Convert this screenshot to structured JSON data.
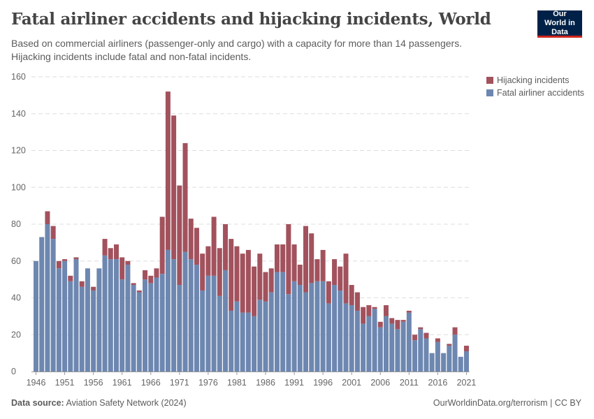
{
  "header": {
    "title": "Fatal airliner accidents and hijacking incidents, World",
    "subtitle": "Based on commercial airliners (passenger-only and cargo) with a capacity for more than 14 passengers. Hijacking incidents include fatal and non-fatal incidents.",
    "logo": "Our World in Data"
  },
  "footer": {
    "source_label": "Data source:",
    "source": "Aviation Safety Network (2024)",
    "url": "OurWorldinData.org/terrorism | CC BY"
  },
  "colors": {
    "accidents": "#6d87b0",
    "hijacking": "#a2525d"
  },
  "chart_data": {
    "type": "bar",
    "stacked": true,
    "grid": true,
    "legend_position": "top-right",
    "ylim": [
      0,
      160
    ],
    "yticks": [
      0,
      20,
      40,
      60,
      80,
      100,
      120,
      140,
      160
    ],
    "xticks": [
      "1946",
      "1951",
      "1956",
      "1961",
      "1966",
      "1971",
      "1976",
      "1981",
      "1986",
      "1991",
      "1996",
      "2001",
      "2006",
      "2011",
      "2016",
      "2021"
    ],
    "categories": [
      1946,
      1947,
      1948,
      1949,
      1950,
      1951,
      1952,
      1953,
      1954,
      1955,
      1956,
      1957,
      1958,
      1959,
      1960,
      1961,
      1962,
      1963,
      1964,
      1965,
      1966,
      1967,
      1968,
      1969,
      1970,
      1971,
      1972,
      1973,
      1974,
      1975,
      1976,
      1977,
      1978,
      1979,
      1980,
      1981,
      1982,
      1983,
      1984,
      1985,
      1986,
      1987,
      1988,
      1989,
      1990,
      1991,
      1992,
      1993,
      1994,
      1995,
      1996,
      1997,
      1998,
      1999,
      2000,
      2001,
      2002,
      2003,
      2004,
      2005,
      2006,
      2007,
      2008,
      2009,
      2010,
      2011,
      2012,
      2013,
      2014,
      2015,
      2016,
      2017,
      2018,
      2019,
      2020,
      2021
    ],
    "series": [
      {
        "name": "Fatal airliner accidents",
        "values": [
          60,
          73,
          80,
          72,
          56,
          60,
          49,
          61,
          46,
          56,
          44,
          56,
          63,
          61,
          61,
          50,
          58,
          47,
          43,
          50,
          48,
          51,
          53,
          66,
          61,
          47,
          65,
          61,
          58,
          44,
          52,
          52,
          41,
          55,
          33,
          38,
          32,
          32,
          30,
          39,
          38,
          43,
          54,
          54,
          42,
          49,
          47,
          43,
          48,
          49,
          49,
          37,
          47,
          44,
          37,
          36,
          33,
          26,
          30,
          34,
          24,
          30,
          26,
          23,
          27,
          32,
          17,
          23,
          18,
          10,
          16,
          10,
          14,
          20,
          8,
          11
        ]
      },
      {
        "name": "Hijacking incidents",
        "values": [
          0,
          0,
          7,
          7,
          4,
          1,
          3,
          1,
          3,
          0,
          2,
          0,
          9,
          6,
          8,
          12,
          2,
          1,
          1,
          5,
          4,
          5,
          31,
          86,
          78,
          54,
          59,
          22,
          20,
          20,
          16,
          32,
          26,
          25,
          39,
          30,
          32,
          34,
          27,
          25,
          16,
          13,
          15,
          15,
          38,
          20,
          11,
          36,
          27,
          12,
          17,
          12,
          14,
          13,
          27,
          11,
          10,
          9,
          6,
          1,
          3,
          6,
          3,
          5,
          1,
          1,
          3,
          1,
          3,
          0,
          2,
          0,
          1,
          4,
          0,
          3
        ]
      }
    ]
  }
}
